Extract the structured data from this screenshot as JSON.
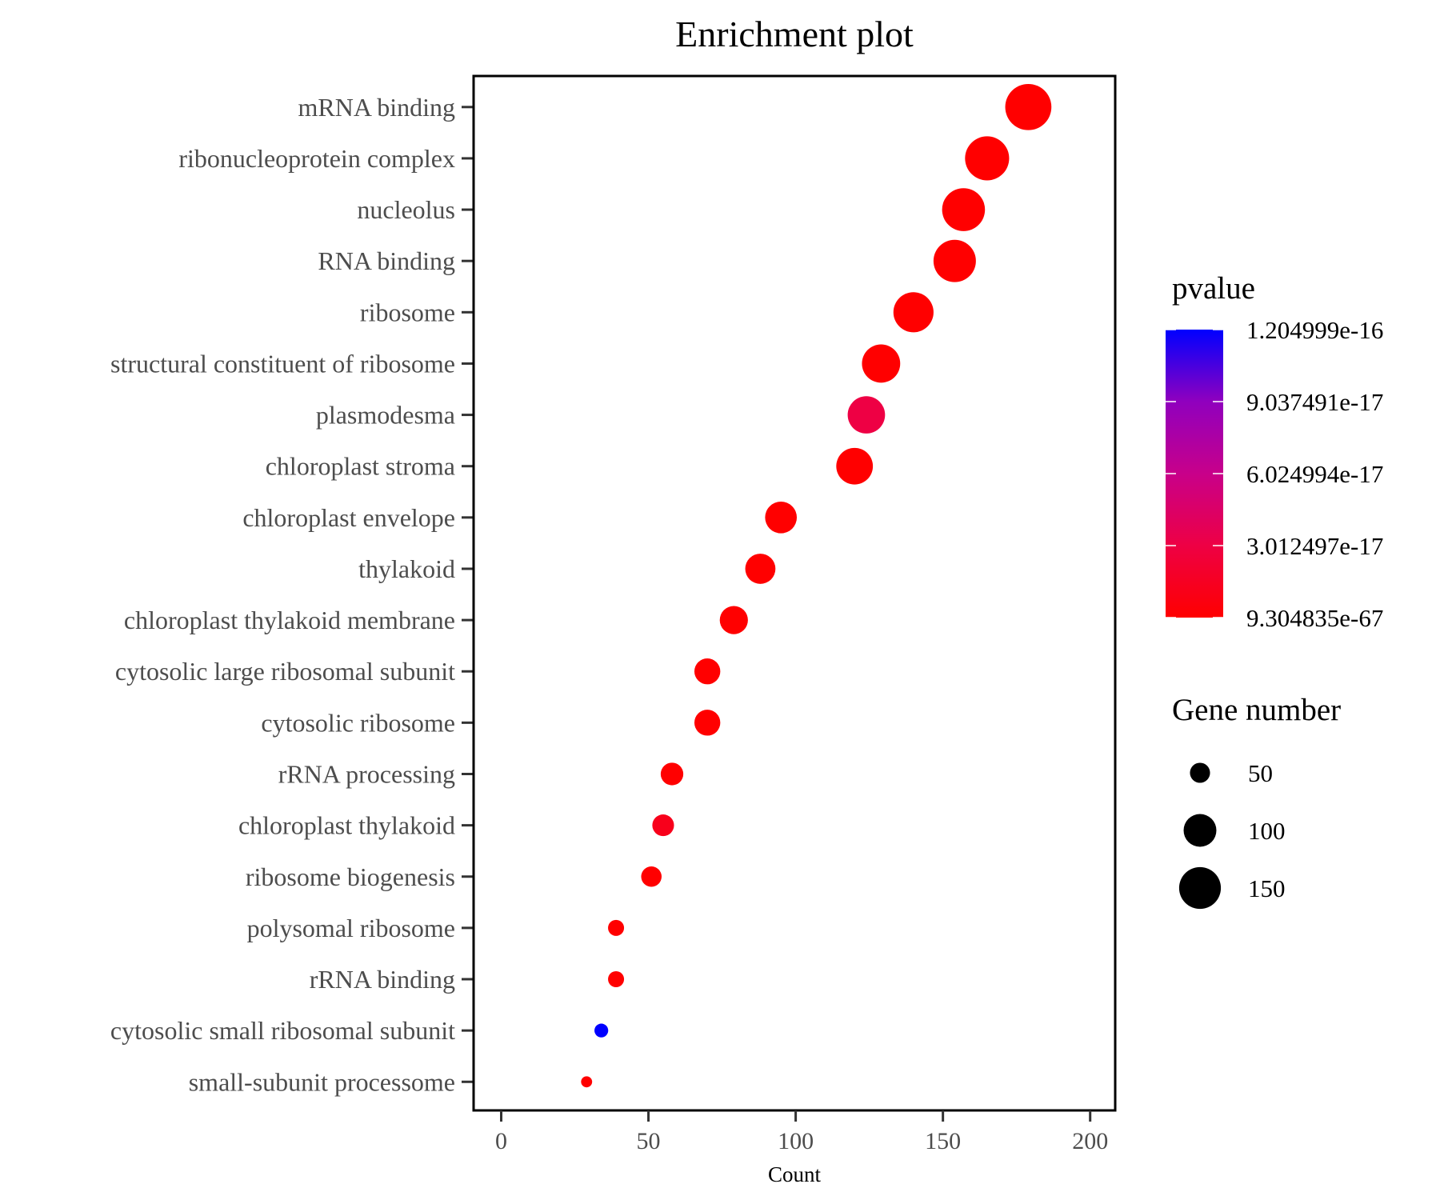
{
  "chart_data": {
    "type": "scatter",
    "title": "Enrichment plot",
    "xlabel": "Count",
    "ylabel": "",
    "xlim": [
      -9,
      209
    ],
    "xticks": [
      0,
      50,
      100,
      150,
      200
    ],
    "grid": false,
    "categories": [
      "mRNA binding",
      "ribonucleoprotein complex",
      "nucleolus",
      "RNA binding",
      "ribosome",
      "structural constituent of ribosome",
      "plasmodesma",
      "chloroplast stroma",
      "chloroplast envelope",
      "thylakoid",
      "chloroplast thylakoid membrane",
      "cytosolic large ribosomal subunit",
      "cytosolic ribosome",
      "rRNA processing",
      "chloroplast thylakoid",
      "ribosome biogenesis",
      "polysomal ribosome",
      "rRNA binding",
      "cytosolic small ribosomal subunit",
      "small-subunit processome"
    ],
    "counts": [
      179,
      165,
      157,
      154,
      140,
      129,
      124,
      120,
      95,
      88,
      79,
      70,
      70,
      58,
      55,
      51,
      39,
      39,
      34,
      29
    ],
    "pvalue_fraction": [
      0,
      0,
      0,
      0,
      0,
      0,
      0.25,
      0,
      0,
      0,
      0,
      0,
      0,
      0,
      0.1,
      0,
      0,
      0,
      1,
      0
    ],
    "color_legend": {
      "title": "pvalue",
      "labels": [
        "1.204999e-16",
        "9.037491e-17",
        "6.024994e-17",
        "3.012497e-17",
        "9.304835e-67"
      ],
      "low_color": "#FF0000",
      "high_color": "#0000FF"
    },
    "size_legend": {
      "title": "Gene number",
      "values": [
        50,
        100,
        150
      ],
      "labels": [
        "50",
        "100",
        "150"
      ]
    }
  }
}
